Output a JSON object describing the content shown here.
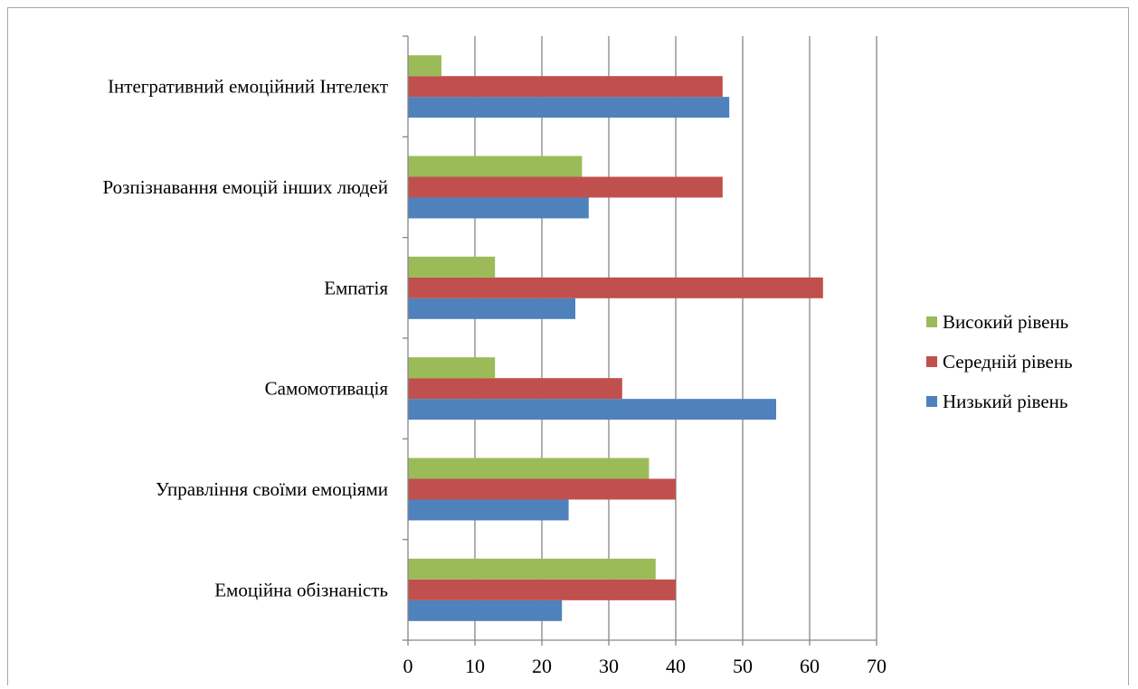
{
  "chart_data": {
    "type": "bar",
    "orientation": "horizontal",
    "categories": [
      "Емоційна обізнаність",
      "Управління своїми емоціями",
      "Самомотивація",
      "Емпатія",
      "Розпізнавання емоцій інших людей",
      "Інтегративний емоційний Інтелект"
    ],
    "series": [
      {
        "name": "Низький рівень",
        "color": "#4f81bd",
        "values": [
          23,
          24,
          55,
          25,
          27,
          48
        ]
      },
      {
        "name": "Середній рівень",
        "color": "#c0504d",
        "values": [
          40,
          40,
          32,
          62,
          47,
          47
        ]
      },
      {
        "name": "Високий рівень",
        "color": "#9bbb59",
        "values": [
          37,
          36,
          13,
          13,
          26,
          5
        ]
      }
    ],
    "xlim": [
      0,
      70
    ],
    "xticks": [
      "0",
      "10",
      "20",
      "30",
      "40",
      "50",
      "60",
      "70"
    ],
    "grid": true,
    "legend_position": "right",
    "legend_order": [
      "Високий рівень",
      "Середній рівень",
      "Низький рівень"
    ]
  }
}
